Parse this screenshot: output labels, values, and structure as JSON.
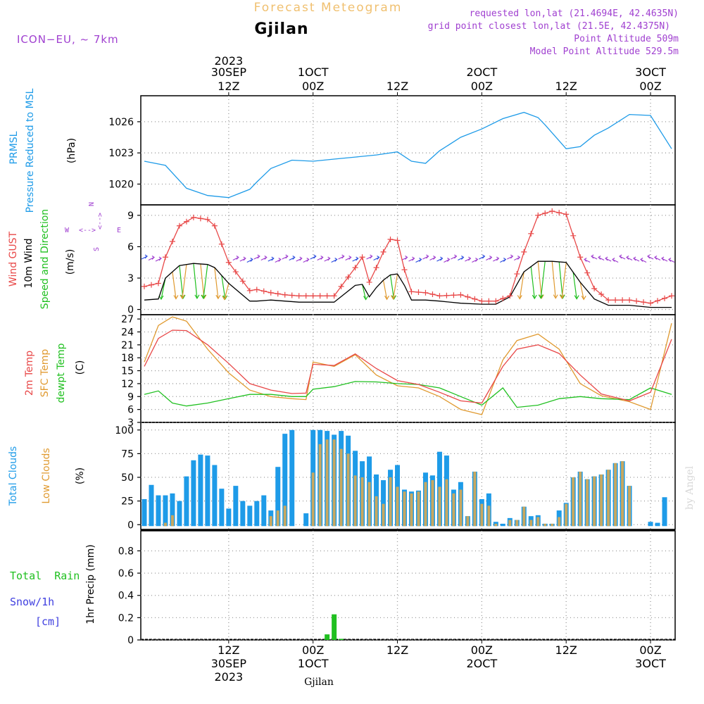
{
  "header": {
    "app_title": "Forecast Meteogram",
    "location": "Gjilan",
    "model": "ICON−EU,  ~ 7km",
    "requested": "requested lon,lat (21.4694E, 42.4635N)",
    "gridpoint": "grid point closest lon,lat (21.5E, 42.4375N)",
    "point_alt": "Point Altitude 509m",
    "model_alt": "Model Point Altitude 529.5m",
    "footer_location": "Gjilan",
    "watermark": "by Angel"
  },
  "colors": {
    "pressure": "#1e9be8",
    "gust": "#e84848",
    "wind": "#000000",
    "temp2m": "#e84848",
    "sfc": "#e09a30",
    "dewpt": "#20c020",
    "total_cloud": "#1e9be8",
    "low_cloud": "#c8a860",
    "rain": "#20c020",
    "snow": "#4040e0",
    "purple": "#a040d0",
    "title_orange": "#f0c070"
  },
  "time_axis": {
    "top_labels": [
      {
        "line1": "2023",
        "line2": "30SEP",
        "line3": "12Z",
        "hour": 12
      },
      {
        "line1": "",
        "line2": "1OCT",
        "line3": "00Z",
        "hour": 24
      },
      {
        "line1": "",
        "line2": "",
        "line3": "12Z",
        "hour": 36
      },
      {
        "line1": "",
        "line2": "2OCT",
        "line3": "00Z",
        "hour": 48
      },
      {
        "line1": "",
        "line2": "",
        "line3": "12Z",
        "hour": 60
      },
      {
        "line1": "",
        "line2": "3OCT",
        "line3": "00Z",
        "hour": 72
      }
    ],
    "bottom_labels": [
      {
        "line1": "12Z",
        "line2": "30SEP",
        "line3": "2023",
        "hour": 12
      },
      {
        "line1": "00Z",
        "line2": "1OCT",
        "line3": "",
        "hour": 24
      },
      {
        "line1": "12Z",
        "line2": "",
        "line3": "",
        "hour": 36
      },
      {
        "line1": "00Z",
        "line2": "2OCT",
        "line3": "",
        "hour": 48
      },
      {
        "line1": "12Z",
        "line2": "",
        "line3": "",
        "hour": 60
      },
      {
        "line1": "00Z",
        "line2": "3OCT",
        "line3": "",
        "hour": 72
      }
    ]
  },
  "panels": {
    "pressure": {
      "label1": "PRMSL",
      "label2": "Pressure Reduced to MSL",
      "unit": "(hPa)"
    },
    "wind": {
      "label1": "Wind GUST",
      "label2": "10m Wind",
      "label3": "Speed and Direction",
      "unit": "(m/s)",
      "compass_w": "W",
      "compass_e": "E",
      "compass_n": "N",
      "compass_s": "S"
    },
    "temp": {
      "label1": "2m Temp",
      "label2": "SFC Temp",
      "label3": "dewpt Temp",
      "unit": "(C)"
    },
    "clouds": {
      "label1": "Total Clouds",
      "label2": "Low Clouds",
      "unit": "(%)"
    },
    "precip": {
      "label1": "Total  Rain",
      "label2": "Snow/1h",
      "label3": "[cm]",
      "unit": "1hr Precip (mm)"
    }
  },
  "chart_data": [
    {
      "type": "line",
      "name": "pressure",
      "title": "PRMSL Pressure Reduced to MSL",
      "ylabel": "hPa",
      "ylim": [
        1018,
        1028.5
      ],
      "yticks": [
        1020,
        1023,
        1026
      ],
      "xlim": [
        -0.5,
        75.5
      ],
      "x": [
        0,
        3,
        6,
        9,
        12,
        15,
        16,
        18,
        21,
        24,
        27,
        30,
        33,
        36,
        38,
        40,
        42,
        45,
        48,
        51,
        54,
        56,
        57,
        60,
        62,
        64,
        66,
        69,
        72,
        75
      ],
      "values": [
        1022.2,
        1021.8,
        1019.6,
        1018.9,
        1018.7,
        1019.5,
        1020.2,
        1021.5,
        1022.3,
        1022.2,
        1022.4,
        1022.6,
        1022.8,
        1023.1,
        1022.2,
        1022,
        1023.2,
        1024.5,
        1025.3,
        1026.3,
        1026.9,
        1026.4,
        1025.7,
        1023.4,
        1023.6,
        1024.7,
        1025.4,
        1026.7,
        1026.6,
        1023.4
      ]
    },
    {
      "type": "line",
      "name": "wind",
      "title": "Wind GUST / 10m Wind Speed and Direction",
      "ylabel": "m/s",
      "ylim": [
        -0.5,
        10
      ],
      "yticks": [
        0,
        3,
        6,
        9
      ],
      "xlim": [
        -0.5,
        75.5
      ],
      "series": [
        {
          "name": "Wind GUST",
          "x": [
            0,
            2,
            3,
            5,
            7,
            9,
            10,
            12,
            15,
            16,
            18,
            20,
            22,
            24,
            27,
            30,
            31,
            32,
            33,
            34,
            35,
            36,
            37,
            38,
            40,
            42,
            45,
            48,
            50,
            52,
            54,
            56,
            58,
            60,
            62,
            64,
            66,
            69,
            72,
            75
          ],
          "values": [
            2.2,
            2.5,
            5,
            8,
            8.8,
            8.6,
            8,
            4.5,
            1.8,
            1.9,
            1.6,
            1.4,
            1.3,
            1.3,
            1.3,
            4,
            5,
            2.6,
            4,
            5.5,
            6.7,
            6.6,
            3.8,
            1.7,
            1.6,
            1.3,
            1.4,
            0.8,
            0.8,
            1.3,
            5.5,
            9,
            9.4,
            9.1,
            5,
            2,
            0.9,
            0.9,
            0.6,
            1.3
          ]
        },
        {
          "name": "10m Wind",
          "x": [
            0,
            2,
            3,
            5,
            7,
            9,
            10,
            12,
            15,
            16,
            18,
            20,
            22,
            24,
            27,
            30,
            31,
            32,
            33,
            34,
            35,
            36,
            37,
            38,
            40,
            42,
            45,
            48,
            50,
            52,
            54,
            56,
            58,
            60,
            62,
            64,
            66,
            69,
            72,
            75
          ],
          "values": [
            0.9,
            1,
            3,
            4.2,
            4.4,
            4.3,
            4,
            2.5,
            0.8,
            0.8,
            0.9,
            0.8,
            0.7,
            0.7,
            0.7,
            2.3,
            2.4,
            1.2,
            2.1,
            2.8,
            3.3,
            3.4,
            2.3,
            0.9,
            0.9,
            0.8,
            0.6,
            0.5,
            0.5,
            1.2,
            3.6,
            4.6,
            4.6,
            4.5,
            2.6,
            1,
            0.4,
            0.4,
            0.2,
            0.2
          ]
        }
      ],
      "direction_arrows": "hourly arrows, green/orange in gusty periods, blue/purple otherwise"
    },
    {
      "type": "line",
      "name": "temperature",
      "title": "2m Temp / SFC Temp / dewpt Temp",
      "ylabel": "C",
      "ylim": [
        3,
        28
      ],
      "yticks": [
        3,
        6,
        9,
        12,
        15,
        18,
        21,
        24,
        27
      ],
      "xlim": [
        -0.5,
        75.5
      ],
      "series": [
        {
          "name": "2m Temp",
          "x": [
            0,
            2,
            4,
            6,
            9,
            12,
            15,
            18,
            21,
            23,
            24,
            27,
            30,
            33,
            36,
            39,
            42,
            45,
            48,
            51,
            53,
            56,
            59,
            62,
            65,
            69,
            72,
            75
          ],
          "values": [
            16,
            22.5,
            24.4,
            24.3,
            21,
            16.7,
            12,
            10.5,
            9.7,
            9.8,
            16.5,
            16.2,
            18.9,
            15.5,
            12.7,
            11.8,
            10,
            8,
            7.5,
            16,
            20,
            21,
            19,
            14,
            9.6,
            8,
            10,
            22.3
          ]
        },
        {
          "name": "SFC Temp",
          "x": [
            0,
            2,
            4,
            6,
            9,
            12,
            15,
            18,
            21,
            23,
            24,
            27,
            30,
            33,
            36,
            39,
            42,
            45,
            48,
            51,
            53,
            56,
            59,
            62,
            65,
            69,
            72,
            75
          ],
          "values": [
            17,
            25.5,
            27.5,
            26.5,
            20,
            14.5,
            10.5,
            9,
            8.5,
            8.3,
            17,
            16,
            18.7,
            14,
            11.5,
            11,
            9,
            6,
            4.8,
            17.5,
            22,
            23.5,
            20,
            12,
            9.2,
            7.8,
            6,
            26
          ]
        },
        {
          "name": "dewpt Temp",
          "x": [
            0,
            2,
            4,
            6,
            9,
            12,
            15,
            18,
            21,
            23,
            24,
            27,
            30,
            33,
            36,
            39,
            42,
            45,
            48,
            51,
            53,
            56,
            59,
            62,
            65,
            69,
            72,
            75
          ],
          "values": [
            9.5,
            10.3,
            7.5,
            6.8,
            7.5,
            8.5,
            9.5,
            9.5,
            9,
            9,
            10.7,
            11.3,
            12.5,
            12.4,
            12,
            11.8,
            11,
            9,
            7,
            11,
            6.5,
            7,
            8.5,
            9,
            8.5,
            8.3,
            11,
            9.5
          ]
        }
      ]
    },
    {
      "type": "bar",
      "name": "clouds",
      "title": "Total Clouds / Low Clouds",
      "ylabel": "%",
      "ylim": [
        -5,
        108
      ],
      "yticks": [
        0,
        25,
        50,
        75,
        100
      ],
      "xlim": [
        -0.5,
        75.5
      ],
      "series": [
        {
          "name": "Total Clouds",
          "values": [
            27,
            42,
            31,
            31,
            33,
            25,
            51,
            68,
            74,
            73,
            63,
            38,
            17,
            41,
            25,
            20,
            25,
            31,
            15,
            61,
            96,
            100,
            0,
            12,
            100,
            100,
            99,
            95,
            99,
            94,
            78,
            67,
            72,
            53,
            47,
            58,
            63,
            37,
            35,
            36,
            55,
            52,
            77,
            73,
            37,
            45,
            9,
            56,
            27,
            33,
            3,
            1,
            7,
            5,
            19,
            9,
            10,
            1,
            1,
            15,
            23,
            50,
            56,
            48,
            51,
            53,
            58,
            65,
            67,
            41,
            0,
            0,
            3,
            2,
            29
          ]
        },
        {
          "name": "Low Clouds",
          "values": [
            0,
            0,
            0,
            2,
            10,
            0,
            0,
            0,
            0,
            0,
            0,
            0,
            0,
            0,
            0,
            0,
            0,
            0,
            9,
            15,
            20,
            0,
            0,
            0,
            55,
            85,
            90,
            90,
            80,
            75,
            52,
            50,
            45,
            30,
            22,
            50,
            40,
            35,
            33,
            35,
            45,
            47,
            40,
            48,
            33,
            37,
            9,
            56,
            22,
            20,
            1,
            0,
            5,
            5,
            19,
            5,
            8,
            1,
            1,
            8,
            22,
            50,
            56,
            48,
            51,
            53,
            58,
            65,
            67,
            41,
            0,
            0,
            0,
            0,
            0
          ]
        }
      ]
    },
    {
      "type": "bar",
      "name": "precip",
      "title": "1hr Precip (mm)",
      "ylabel": "mm",
      "ylim": [
        0,
        0.98
      ],
      "yticks": [
        0,
        0.2,
        0.4,
        0.6,
        0.8
      ],
      "xlim": [
        -0.5,
        75.5
      ],
      "series": [
        {
          "name": "Total Rain",
          "x": [
            26,
            27,
            28
          ],
          "values": [
            0.05,
            0.23,
            0.01
          ]
        },
        {
          "name": "Snow/1h",
          "x": [],
          "values": []
        }
      ]
    }
  ]
}
